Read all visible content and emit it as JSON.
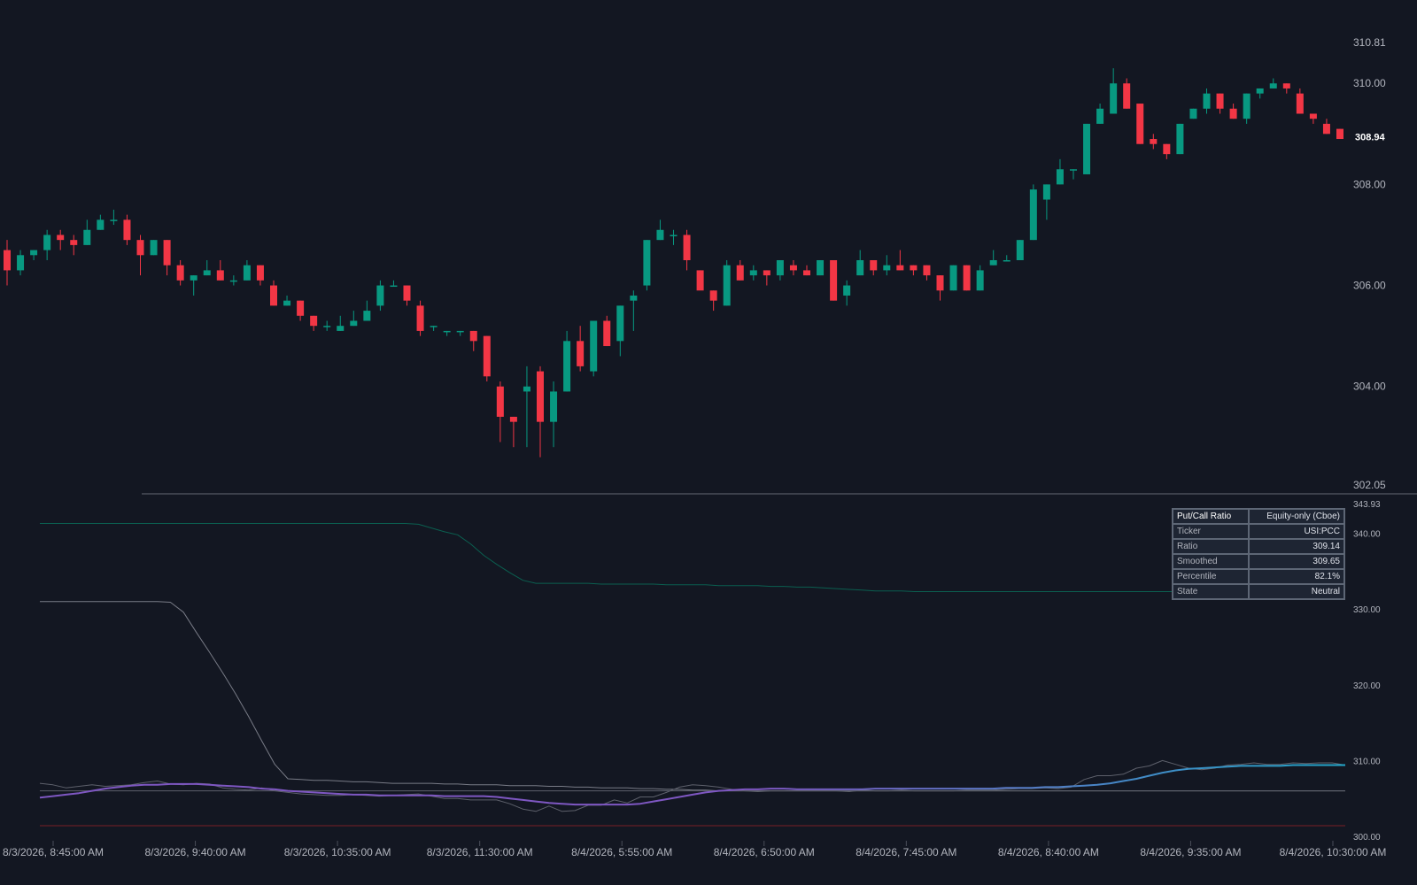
{
  "colors": {
    "background": "#131722",
    "up": "#089981",
    "down": "#f23645",
    "axis_text": "#b2b5be",
    "upper_band": "#0b5f50",
    "gray_line": "#787b86",
    "flat_line": "#5d606b",
    "red_line": "#7a1f26",
    "smoothed_start": "#7e57c2",
    "smoothed_end": "#22a6c9"
  },
  "chart_data": [
    {
      "type": "candlestick",
      "panel": "price",
      "ylim": [
        302.05,
        310.81
      ],
      "y_ticks": [
        "310.81",
        "310.00",
        "308.00",
        "306.00",
        "304.00",
        "302.05"
      ],
      "last_price_label": "308.94",
      "x_tick_labels": [
        "8/3/2026, 8:45:00 AM",
        "8/3/2026, 9:40:00 AM",
        "8/3/2026, 10:35:00 AM",
        "8/3/2026, 11:30:00 AM",
        "8/4/2026, 5:55:00 AM",
        "8/4/2026, 6:50:00 AM",
        "8/4/2026, 7:45:00 AM",
        "8/4/2026, 8:40:00 AM",
        "8/4/2026, 9:35:00 AM",
        "8/4/2026, 10:30:00 AM"
      ],
      "candles": [
        [
          306.7,
          306.3,
          306.9,
          306.0
        ],
        [
          306.3,
          306.6,
          306.7,
          306.2
        ],
        [
          306.6,
          306.7,
          306.7,
          306.5
        ],
        [
          306.7,
          307.0,
          307.1,
          306.5
        ],
        [
          307.0,
          306.9,
          307.1,
          306.7
        ],
        [
          306.9,
          306.8,
          307.0,
          306.6
        ],
        [
          306.8,
          307.1,
          307.3,
          306.8
        ],
        [
          307.1,
          307.3,
          307.4,
          307.1
        ],
        [
          307.3,
          307.3,
          307.5,
          307.2
        ],
        [
          307.3,
          306.9,
          307.4,
          306.8
        ],
        [
          306.9,
          306.6,
          307.0,
          306.2
        ],
        [
          306.6,
          306.9,
          306.9,
          306.6
        ],
        [
          306.9,
          306.4,
          306.9,
          306.2
        ],
        [
          306.4,
          306.1,
          306.5,
          306.0
        ],
        [
          306.1,
          306.2,
          306.2,
          305.8
        ],
        [
          306.2,
          306.3,
          306.5,
          306.2
        ],
        [
          306.3,
          306.1,
          306.5,
          306.1
        ],
        [
          306.1,
          306.1,
          306.2,
          306.0
        ],
        [
          306.1,
          306.4,
          306.5,
          306.1
        ],
        [
          306.4,
          306.1,
          306.4,
          306.0
        ],
        [
          306.0,
          305.6,
          306.1,
          305.6
        ],
        [
          305.6,
          305.7,
          305.8,
          305.6
        ],
        [
          305.7,
          305.4,
          305.7,
          305.3
        ],
        [
          305.4,
          305.2,
          305.4,
          305.1
        ],
        [
          305.2,
          305.2,
          305.3,
          305.1
        ],
        [
          305.1,
          305.2,
          305.4,
          305.1
        ],
        [
          305.2,
          305.3,
          305.5,
          305.2
        ],
        [
          305.3,
          305.5,
          305.7,
          305.3
        ],
        [
          305.6,
          306.0,
          306.1,
          305.5
        ],
        [
          306.0,
          306.0,
          306.1,
          306.0
        ],
        [
          306.0,
          305.7,
          306.0,
          305.6
        ],
        [
          305.6,
          305.1,
          305.7,
          305.0
        ],
        [
          305.2,
          305.2,
          305.2,
          305.1
        ],
        [
          305.1,
          305.1,
          305.1,
          305.0
        ],
        [
          305.1,
          305.1,
          305.1,
          305.0
        ],
        [
          305.1,
          304.9,
          305.1,
          304.7
        ],
        [
          305.0,
          304.2,
          305.0,
          304.1
        ],
        [
          304.0,
          303.4,
          304.1,
          302.9
        ],
        [
          303.4,
          303.3,
          303.4,
          302.8
        ],
        [
          303.9,
          304.0,
          304.4,
          302.8
        ],
        [
          304.3,
          303.3,
          304.4,
          302.6
        ],
        [
          303.3,
          303.9,
          304.1,
          302.8
        ],
        [
          303.9,
          304.9,
          305.1,
          303.9
        ],
        [
          304.9,
          304.4,
          305.2,
          304.3
        ],
        [
          304.3,
          305.3,
          305.3,
          304.2
        ],
        [
          305.3,
          304.8,
          305.4,
          304.8
        ],
        [
          304.9,
          305.6,
          305.6,
          304.6
        ],
        [
          305.7,
          305.8,
          305.9,
          305.1
        ],
        [
          306.0,
          306.9,
          306.9,
          305.9
        ],
        [
          306.9,
          307.1,
          307.3,
          306.9
        ],
        [
          307.0,
          307.0,
          307.1,
          306.8
        ],
        [
          307.0,
          306.5,
          307.1,
          306.3
        ],
        [
          306.3,
          305.9,
          306.3,
          306.0
        ],
        [
          305.9,
          305.7,
          305.9,
          305.5
        ],
        [
          305.6,
          306.4,
          306.5,
          305.6
        ],
        [
          306.4,
          306.1,
          306.5,
          306.1
        ],
        [
          306.2,
          306.3,
          306.4,
          306.1
        ],
        [
          306.3,
          306.2,
          306.3,
          306.0
        ],
        [
          306.2,
          306.5,
          306.5,
          306.1
        ],
        [
          306.4,
          306.3,
          306.5,
          306.2
        ],
        [
          306.3,
          306.2,
          306.4,
          306.2
        ],
        [
          306.2,
          306.5,
          306.5,
          306.2
        ],
        [
          306.5,
          305.7,
          306.5,
          305.7
        ],
        [
          305.8,
          306.0,
          306.1,
          305.6
        ],
        [
          306.2,
          306.5,
          306.7,
          306.2
        ],
        [
          306.5,
          306.3,
          306.5,
          306.2
        ],
        [
          306.3,
          306.4,
          306.6,
          306.2
        ],
        [
          306.4,
          306.3,
          306.7,
          306.3
        ],
        [
          306.4,
          306.3,
          306.4,
          306.2
        ],
        [
          306.4,
          306.2,
          306.4,
          306.1
        ],
        [
          306.2,
          305.9,
          306.2,
          305.7
        ],
        [
          305.9,
          306.4,
          306.4,
          305.9
        ],
        [
          306.4,
          305.9,
          306.4,
          305.9
        ],
        [
          305.9,
          306.3,
          306.4,
          305.9
        ],
        [
          306.4,
          306.5,
          306.7,
          306.4
        ],
        [
          306.5,
          306.5,
          306.6,
          306.5
        ],
        [
          306.5,
          306.9,
          306.9,
          306.5
        ],
        [
          306.9,
          307.9,
          308.0,
          306.9
        ],
        [
          307.7,
          308.0,
          308.0,
          307.3
        ],
        [
          308.0,
          308.3,
          308.5,
          308.0
        ],
        [
          308.3,
          308.3,
          308.3,
          308.1
        ],
        [
          308.2,
          309.2,
          309.2,
          308.2
        ],
        [
          309.2,
          309.5,
          309.6,
          309.2
        ],
        [
          309.4,
          310.0,
          310.3,
          309.4
        ],
        [
          310.0,
          309.5,
          310.1,
          309.5
        ],
        [
          309.6,
          308.8,
          309.6,
          308.8
        ],
        [
          308.9,
          308.8,
          309.0,
          308.7
        ],
        [
          308.8,
          308.6,
          308.8,
          308.5
        ],
        [
          308.6,
          309.2,
          309.2,
          308.6
        ],
        [
          309.3,
          309.5,
          309.5,
          309.3
        ],
        [
          309.5,
          309.8,
          309.9,
          309.4
        ],
        [
          309.8,
          309.5,
          309.8,
          309.4
        ],
        [
          309.5,
          309.3,
          309.6,
          309.3
        ],
        [
          309.3,
          309.8,
          309.8,
          309.2
        ],
        [
          309.8,
          309.9,
          309.9,
          309.7
        ],
        [
          309.9,
          310.0,
          310.1,
          309.9
        ],
        [
          310.0,
          309.9,
          310.0,
          309.8
        ],
        [
          309.8,
          309.4,
          309.9,
          309.4
        ],
        [
          309.4,
          309.3,
          309.4,
          309.2
        ],
        [
          309.2,
          309.0,
          309.3,
          309.0
        ],
        [
          309.1,
          308.9,
          309.1,
          308.9
        ]
      ]
    },
    {
      "type": "line",
      "panel": "indicator",
      "ylim": [
        300.0,
        343.93
      ],
      "y_ticks": [
        "343.93",
        "340.00",
        "330.00",
        "320.00",
        "310.00",
        "300.00"
      ],
      "series": [
        {
          "key": "upper_band",
          "values": [
            341.3,
            341.3,
            341.3,
            341.3,
            341.3,
            341.3,
            341.3,
            341.3,
            341.3,
            341.3,
            341.3,
            341.3,
            341.3,
            341.3,
            341.3,
            341.3,
            341.3,
            341.3,
            341.3,
            341.3,
            341.3,
            341.3,
            341.3,
            341.3,
            341.3,
            341.3,
            341.3,
            341.3,
            341.3,
            341.2,
            340.7,
            340.2,
            339.8,
            338.6,
            337.1,
            335.9,
            334.8,
            333.8,
            333.4,
            333.4,
            333.4,
            333.4,
            333.4,
            333.3,
            333.3,
            333.3,
            333.3,
            333.3,
            333.2,
            333.2,
            333.2,
            333.2,
            333.1,
            333.1,
            333.1,
            333.1,
            333.0,
            333.0,
            332.9,
            332.9,
            332.8,
            332.7,
            332.6,
            332.5,
            332.4,
            332.4,
            332.4,
            332.3,
            332.3,
            332.3,
            332.3,
            332.3,
            332.3,
            332.3,
            332.3,
            332.3,
            332.3,
            332.3,
            332.3,
            332.3,
            332.3,
            332.3,
            332.3,
            332.3,
            332.3,
            332.3,
            332.3,
            332.3,
            332.3,
            332.3,
            332.3,
            332.3,
            332.3,
            332.3,
            332.3,
            332.3,
            332.3,
            332.3,
            332.3,
            332.3,
            332.3
          ]
        },
        {
          "key": "baseline_gray",
          "values": [
            331.0,
            331.0,
            331.0,
            331.0,
            331.0,
            331.0,
            331.0,
            331.0,
            331.0,
            331.0,
            330.9,
            329.6,
            326.9,
            324.3,
            321.6,
            318.8,
            315.8,
            312.6,
            309.5,
            307.6,
            307.5,
            307.4,
            307.4,
            307.3,
            307.2,
            307.2,
            307.1,
            307.0,
            307.0,
            307.0,
            307.0,
            306.9,
            306.9,
            306.8,
            306.8,
            306.8,
            306.7,
            306.7,
            306.7,
            306.6,
            306.6,
            306.5,
            306.5,
            306.4,
            306.4,
            306.4,
            306.3,
            306.3,
            306.2,
            306.2,
            306.1,
            306.1,
            306.0,
            306.0,
            306.0,
            306.0,
            306.0,
            306.0,
            306.0,
            306.0,
            306.0,
            306.0,
            306.0,
            306.0,
            306.0,
            306.0,
            306.0,
            306.0,
            306.0,
            306.0,
            306.0,
            306.0,
            306.0,
            306.0,
            306.0,
            306.0,
            306.0,
            306.0,
            306.0,
            306.0,
            306.0,
            306.0,
            306.0,
            306.0,
            306.0,
            306.0,
            306.0,
            306.0,
            306.0,
            306.0,
            306.0,
            306.0,
            306.0,
            306.0,
            306.0,
            306.0,
            306.0,
            306.0,
            306.0,
            306.0,
            306.0
          ]
        },
        {
          "key": "flat_line",
          "values": [
            306.0,
            306.0
          ]
        },
        {
          "key": "lower_red",
          "values": [
            301.4,
            301.4
          ]
        },
        {
          "key": "ratio",
          "values": [
            307.0,
            306.8,
            306.4,
            306.6,
            306.8,
            306.6,
            306.7,
            306.8,
            307.1,
            307.3,
            306.9,
            306.8,
            307.0,
            306.9,
            306.4,
            306.2,
            306.1,
            306.4,
            306.0,
            305.8,
            305.6,
            305.5,
            305.4,
            305.4,
            305.5,
            305.4,
            305.3,
            305.4,
            305.5,
            305.6,
            305.3,
            305.0,
            305.0,
            304.8,
            304.8,
            304.8,
            304.3,
            303.6,
            303.3,
            304.0,
            303.3,
            303.4,
            304.1,
            304.1,
            304.8,
            304.4,
            305.2,
            305.2,
            305.8,
            306.5,
            306.8,
            306.7,
            306.5,
            306.2,
            306.0,
            305.9,
            306.0,
            306.0,
            306.0,
            306.0,
            306.0,
            306.0,
            305.9,
            306.1,
            306.0,
            306.0,
            306.1,
            306.0,
            306.0,
            306.0,
            306.0,
            306.1,
            306.1,
            306.1,
            306.2,
            306.3,
            306.3,
            306.4,
            306.3,
            306.5,
            307.5,
            308.0,
            308.0,
            308.2,
            309.0,
            309.3,
            310.0,
            309.5,
            309.0,
            308.8,
            309.0,
            309.4,
            309.5,
            309.7,
            309.5,
            309.5,
            309.7,
            309.6,
            309.7,
            309.7,
            309.4
          ]
        },
        {
          "key": "smoothed",
          "values": [
            305.1,
            305.3,
            305.5,
            305.7,
            306.0,
            306.3,
            306.5,
            306.7,
            306.8,
            306.8,
            306.9,
            306.9,
            306.9,
            306.8,
            306.7,
            306.6,
            306.5,
            306.3,
            306.2,
            306.0,
            305.9,
            305.8,
            305.7,
            305.6,
            305.5,
            305.5,
            305.4,
            305.4,
            305.4,
            305.4,
            305.4,
            305.3,
            305.3,
            305.3,
            305.3,
            305.2,
            305.0,
            304.8,
            304.6,
            304.4,
            304.3,
            304.2,
            304.2,
            304.2,
            304.2,
            304.2,
            304.3,
            304.6,
            304.9,
            305.2,
            305.5,
            305.8,
            306.0,
            306.1,
            306.2,
            306.2,
            306.3,
            306.3,
            306.2,
            306.2,
            306.2,
            306.2,
            306.2,
            306.2,
            306.3,
            306.3,
            306.3,
            306.3,
            306.3,
            306.3,
            306.3,
            306.3,
            306.3,
            306.3,
            306.4,
            306.4,
            306.4,
            306.5,
            306.5,
            306.6,
            306.7,
            306.8,
            307.0,
            307.3,
            307.6,
            308.0,
            308.4,
            308.7,
            308.9,
            309.0,
            309.1,
            309.2,
            309.3,
            309.3,
            309.3,
            309.3,
            309.4,
            309.4,
            309.4,
            309.4,
            309.4
          ]
        }
      ]
    }
  ],
  "info_table": {
    "header_key": "Put/Call Ratio",
    "header_value": "Equity-only (Cboe)",
    "rows": [
      {
        "key": "Ticker",
        "value": "USI:PCC"
      },
      {
        "key": "Ratio",
        "value": "309.14"
      },
      {
        "key": "Smoothed",
        "value": "309.65"
      },
      {
        "key": "Percentile",
        "value": "82.1%"
      },
      {
        "key": "State",
        "value": "Neutral"
      }
    ]
  }
}
